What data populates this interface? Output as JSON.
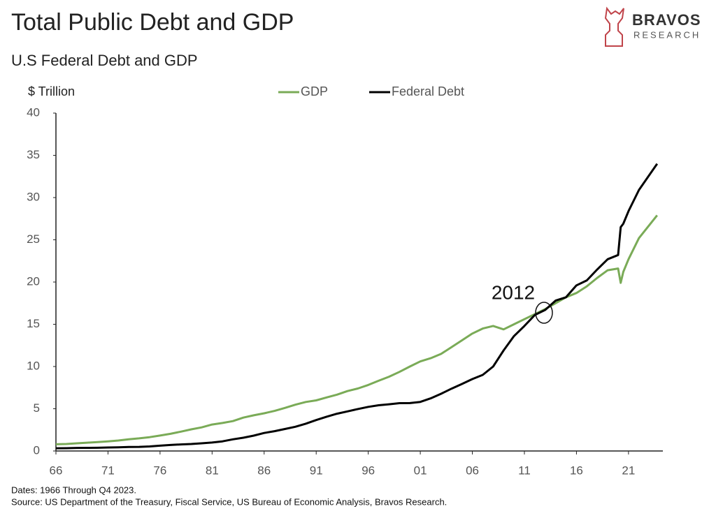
{
  "chart_data": {
    "type": "line",
    "title": "Total Public Debt and GDP",
    "subtitle": "U.S Federal Debt and GDP",
    "ylabel": "$ Trillion",
    "logo": [
      "BRAVOS",
      "RESEARCH"
    ],
    "annotation": "2012",
    "notes": [
      "Dates: 1966 Through Q4 2023.",
      "Source: US Department of the Treasury, Fiscal Service, US Bureau of Economic Analysis, Bravos Research."
    ],
    "x": [
      1966,
      1967,
      1968,
      1969,
      1970,
      1971,
      1972,
      1973,
      1974,
      1975,
      1976,
      1977,
      1978,
      1979,
      1980,
      1981,
      1982,
      1983,
      1984,
      1985,
      1986,
      1987,
      1988,
      1989,
      1990,
      1991,
      1992,
      1993,
      1994,
      1995,
      1996,
      1997,
      1998,
      1999,
      2000,
      2001,
      2002,
      2003,
      2004,
      2005,
      2006,
      2007,
      2008,
      2009,
      2010,
      2011,
      2012,
      2013,
      2014,
      2015,
      2016,
      2017,
      2018,
      2019,
      2020,
      2020.25,
      2020.5,
      2021,
      2022,
      2023.75
    ],
    "series": [
      {
        "name": "GDP",
        "color": "#7aab57",
        "values": [
          0.79,
          0.83,
          0.91,
          0.98,
          1.05,
          1.13,
          1.24,
          1.39,
          1.5,
          1.64,
          1.83,
          2.03,
          2.29,
          2.56,
          2.79,
          3.13,
          3.31,
          3.54,
          3.95,
          4.22,
          4.46,
          4.74,
          5.1,
          5.48,
          5.8,
          5.99,
          6.34,
          6.67,
          7.09,
          7.4,
          7.82,
          8.31,
          8.79,
          9.36,
          10.0,
          10.6,
          10.98,
          11.5,
          12.3,
          13.1,
          13.9,
          14.5,
          14.8,
          14.4,
          15.0,
          15.6,
          16.2,
          16.8,
          17.5,
          18.2,
          18.7,
          19.5,
          20.5,
          21.4,
          21.6,
          19.9,
          21.2,
          22.7,
          25.2,
          27.9
        ]
      },
      {
        "name": "Federal Debt",
        "color": "#000000",
        "values": [
          0.32,
          0.33,
          0.36,
          0.37,
          0.38,
          0.41,
          0.44,
          0.47,
          0.49,
          0.54,
          0.63,
          0.71,
          0.78,
          0.83,
          0.91,
          1.0,
          1.14,
          1.38,
          1.57,
          1.82,
          2.13,
          2.35,
          2.6,
          2.87,
          3.23,
          3.66,
          4.06,
          4.41,
          4.69,
          4.97,
          5.22,
          5.41,
          5.53,
          5.66,
          5.67,
          5.81,
          6.23,
          6.78,
          7.38,
          7.93,
          8.51,
          9.01,
          10.0,
          11.9,
          13.6,
          14.8,
          16.1,
          16.7,
          17.8,
          18.2,
          19.6,
          20.2,
          21.5,
          22.7,
          23.2,
          26.5,
          26.9,
          28.4,
          30.9,
          34.0
        ]
      }
    ],
    "xlim": [
      1966,
      2024.3
    ],
    "xticks": [
      {
        "value": 1966,
        "label": "66"
      },
      {
        "value": 1971,
        "label": "71"
      },
      {
        "value": 1976,
        "label": "76"
      },
      {
        "value": 1981,
        "label": "81"
      },
      {
        "value": 1986,
        "label": "86"
      },
      {
        "value": 1991,
        "label": "91"
      },
      {
        "value": 1996,
        "label": "96"
      },
      {
        "value": 2001,
        "label": "01"
      },
      {
        "value": 2006,
        "label": "06"
      },
      {
        "value": 2011,
        "label": "11"
      },
      {
        "value": 2016,
        "label": "16"
      },
      {
        "value": 2021,
        "label": "21"
      }
    ],
    "ylim": [
      0,
      40
    ],
    "yticks": [
      0,
      5,
      10,
      15,
      20,
      25,
      30,
      35,
      40
    ],
    "grid": false
  }
}
